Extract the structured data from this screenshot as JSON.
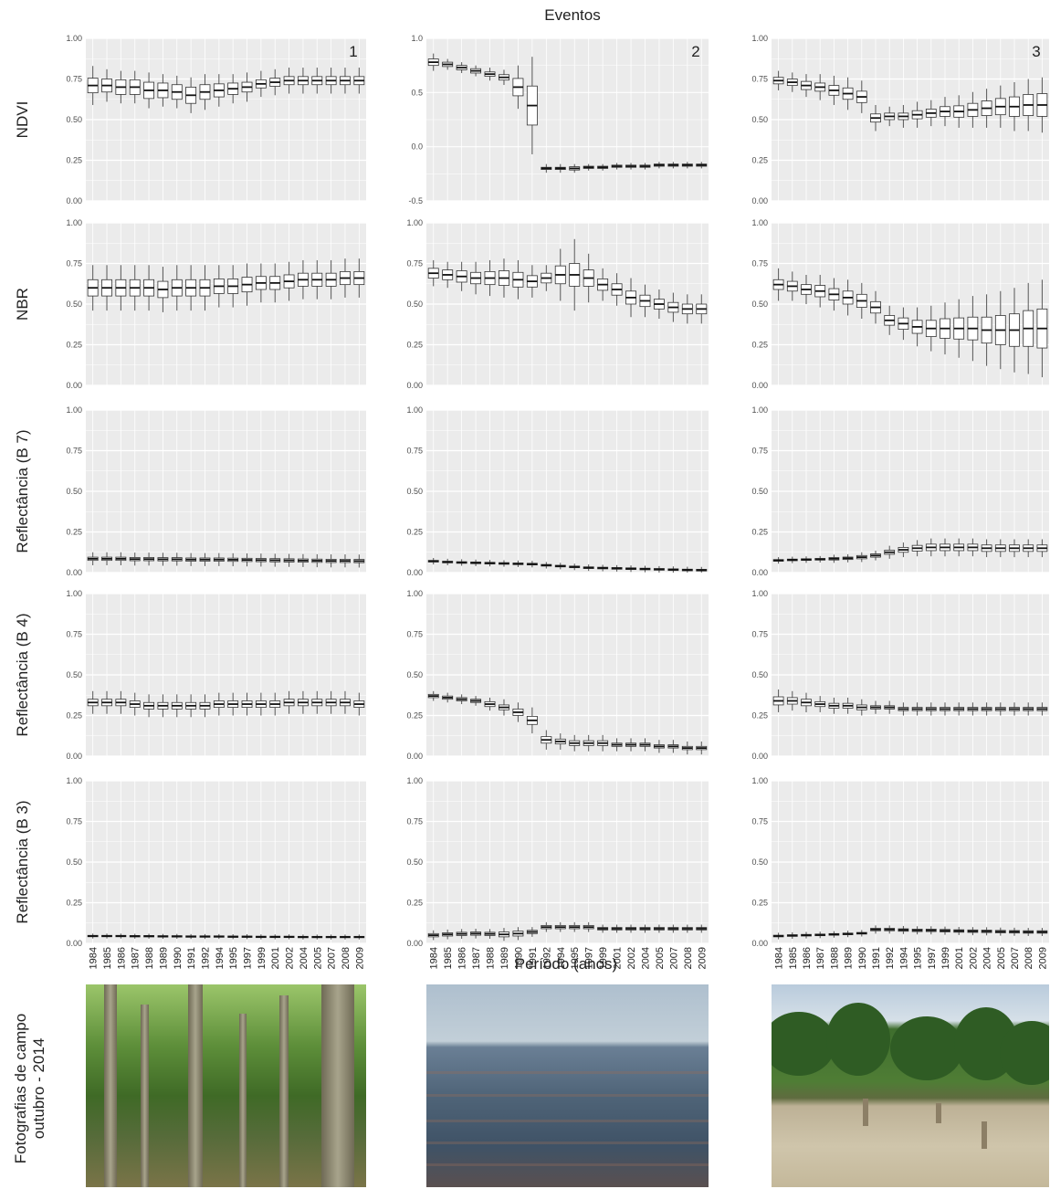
{
  "figure": {
    "top_title": "Eventos",
    "x_axis_title": "Período (anos)",
    "photo_label": [
      "Fotografias de campo",
      "outubro - 2014"
    ],
    "column_numbers": [
      "1",
      "2",
      "3"
    ],
    "row_labels": [
      "NDVI",
      "NBR",
      "Reflectância (B 7)",
      "Reflectância (B 4)",
      "Reflectância (B 3)"
    ],
    "years": [
      "1984",
      "1985",
      "1986",
      "1987",
      "1988",
      "1989",
      "1990",
      "1991",
      "1992",
      "1994",
      "1995",
      "1997",
      "1999",
      "2001",
      "2002",
      "2004",
      "2005",
      "2007",
      "2008",
      "2009"
    ],
    "panel_background": "#ebebeb",
    "grid_color": "#ffffff",
    "box_fill": "#ffffff",
    "box_stroke": "#333333"
  },
  "chart_data": [
    {
      "type": "box",
      "row": "NDVI",
      "column": "1",
      "ylim": [
        0,
        1
      ],
      "yticks": [
        "0.00",
        "0.25",
        "0.50",
        "0.75",
        "1.00"
      ],
      "median": [
        0.71,
        0.71,
        0.7,
        0.7,
        0.68,
        0.68,
        0.67,
        0.65,
        0.67,
        0.68,
        0.69,
        0.7,
        0.72,
        0.73,
        0.74,
        0.74,
        0.74,
        0.74,
        0.74,
        0.74
      ],
      "iqr": [
        0.09,
        0.08,
        0.09,
        0.09,
        0.1,
        0.09,
        0.09,
        0.1,
        0.09,
        0.08,
        0.07,
        0.06,
        0.05,
        0.05,
        0.05,
        0.05,
        0.05,
        0.05,
        0.05,
        0.05
      ],
      "whisker": [
        0.12,
        0.1,
        0.1,
        0.1,
        0.11,
        0.1,
        0.1,
        0.11,
        0.11,
        0.1,
        0.09,
        0.09,
        0.08,
        0.08,
        0.08,
        0.08,
        0.08,
        0.08,
        0.08,
        0.08
      ]
    },
    {
      "type": "box",
      "row": "NDVI",
      "column": "2",
      "ylim": [
        -0.5,
        1
      ],
      "yticks": [
        "-0.5",
        "0.0",
        "0.5",
        "1.0"
      ],
      "median": [
        0.78,
        0.76,
        0.73,
        0.7,
        0.67,
        0.64,
        0.55,
        0.38,
        -0.2,
        -0.2,
        -0.2,
        -0.19,
        -0.19,
        -0.18,
        -0.18,
        -0.18,
        -0.17,
        -0.17,
        -0.17,
        -0.17
      ],
      "iqr": [
        0.06,
        0.04,
        0.04,
        0.04,
        0.04,
        0.05,
        0.16,
        0.36,
        0.02,
        0.02,
        0.03,
        0.02,
        0.02,
        0.02,
        0.02,
        0.02,
        0.02,
        0.02,
        0.02,
        0.02
      ],
      "whisker": [
        0.08,
        0.05,
        0.05,
        0.05,
        0.06,
        0.07,
        0.2,
        0.45,
        0.04,
        0.04,
        0.04,
        0.03,
        0.03,
        0.03,
        0.03,
        0.03,
        0.03,
        0.03,
        0.03,
        0.03
      ]
    },
    {
      "type": "box",
      "row": "NDVI",
      "column": "3",
      "ylim": [
        0,
        1
      ],
      "yticks": [
        "0.00",
        "0.25",
        "0.50",
        "0.75",
        "1.00"
      ],
      "median": [
        0.74,
        0.73,
        0.71,
        0.7,
        0.68,
        0.66,
        0.64,
        0.51,
        0.52,
        0.52,
        0.53,
        0.54,
        0.55,
        0.55,
        0.56,
        0.57,
        0.58,
        0.58,
        0.59,
        0.59
      ],
      "iqr": [
        0.04,
        0.04,
        0.05,
        0.05,
        0.06,
        0.07,
        0.07,
        0.05,
        0.04,
        0.04,
        0.05,
        0.05,
        0.06,
        0.07,
        0.08,
        0.09,
        0.1,
        0.12,
        0.13,
        0.14
      ],
      "whisker": [
        0.06,
        0.06,
        0.07,
        0.08,
        0.09,
        0.1,
        0.1,
        0.08,
        0.06,
        0.07,
        0.08,
        0.08,
        0.09,
        0.1,
        0.11,
        0.12,
        0.13,
        0.15,
        0.16,
        0.17
      ]
    },
    {
      "type": "box",
      "row": "NBR",
      "column": "1",
      "ylim": [
        0,
        1
      ],
      "yticks": [
        "0.00",
        "0.25",
        "0.50",
        "0.75",
        "1.00"
      ],
      "median": [
        0.6,
        0.6,
        0.6,
        0.6,
        0.6,
        0.59,
        0.6,
        0.6,
        0.6,
        0.61,
        0.61,
        0.62,
        0.63,
        0.63,
        0.64,
        0.65,
        0.65,
        0.65,
        0.66,
        0.66
      ],
      "iqr": [
        0.1,
        0.1,
        0.1,
        0.1,
        0.1,
        0.1,
        0.1,
        0.1,
        0.1,
        0.09,
        0.09,
        0.09,
        0.08,
        0.08,
        0.08,
        0.08,
        0.08,
        0.08,
        0.08,
        0.08
      ],
      "whisker": [
        0.14,
        0.14,
        0.14,
        0.14,
        0.14,
        0.14,
        0.14,
        0.14,
        0.14,
        0.13,
        0.13,
        0.13,
        0.12,
        0.12,
        0.12,
        0.12,
        0.12,
        0.12,
        0.12,
        0.12
      ]
    },
    {
      "type": "box",
      "row": "NBR",
      "column": "2",
      "ylim": [
        0,
        1
      ],
      "yticks": [
        "0.00",
        "0.25",
        "0.50",
        "0.75",
        "1.00"
      ],
      "median": [
        0.69,
        0.68,
        0.67,
        0.66,
        0.66,
        0.66,
        0.65,
        0.64,
        0.66,
        0.68,
        0.68,
        0.66,
        0.62,
        0.59,
        0.54,
        0.52,
        0.5,
        0.48,
        0.47,
        0.47
      ],
      "iqr": [
        0.06,
        0.06,
        0.07,
        0.07,
        0.08,
        0.09,
        0.09,
        0.07,
        0.06,
        0.11,
        0.14,
        0.1,
        0.07,
        0.07,
        0.08,
        0.07,
        0.06,
        0.06,
        0.06,
        0.06
      ],
      "whisker": [
        0.08,
        0.08,
        0.09,
        0.1,
        0.11,
        0.12,
        0.12,
        0.1,
        0.08,
        0.16,
        0.22,
        0.15,
        0.1,
        0.1,
        0.12,
        0.1,
        0.09,
        0.09,
        0.09,
        0.09
      ]
    },
    {
      "type": "box",
      "row": "NBR",
      "column": "3",
      "ylim": [
        0,
        1
      ],
      "yticks": [
        "0.00",
        "0.25",
        "0.50",
        "0.75",
        "1.00"
      ],
      "median": [
        0.62,
        0.61,
        0.59,
        0.58,
        0.56,
        0.54,
        0.52,
        0.48,
        0.4,
        0.38,
        0.36,
        0.35,
        0.35,
        0.35,
        0.35,
        0.34,
        0.34,
        0.34,
        0.35,
        0.35
      ],
      "iqr": [
        0.06,
        0.06,
        0.06,
        0.07,
        0.07,
        0.08,
        0.08,
        0.07,
        0.06,
        0.07,
        0.08,
        0.1,
        0.12,
        0.13,
        0.14,
        0.16,
        0.18,
        0.2,
        0.22,
        0.24
      ],
      "whisker": [
        0.1,
        0.09,
        0.09,
        0.1,
        0.1,
        0.11,
        0.11,
        0.1,
        0.09,
        0.1,
        0.12,
        0.14,
        0.16,
        0.18,
        0.2,
        0.22,
        0.24,
        0.26,
        0.28,
        0.3
      ]
    },
    {
      "type": "box",
      "row": "Reflectância (B 7)",
      "column": "1",
      "ylim": [
        0,
        1
      ],
      "yticks": [
        "0.00",
        "0.25",
        "0.50",
        "0.75",
        "1.00"
      ],
      "median": [
        0.085,
        0.085,
        0.085,
        0.083,
        0.083,
        0.082,
        0.082,
        0.08,
        0.08,
        0.08,
        0.079,
        0.078,
        0.077,
        0.076,
        0.075,
        0.074,
        0.073,
        0.072,
        0.072,
        0.071
      ],
      "iqr": [
        0.02,
        0.02,
        0.02,
        0.02,
        0.02,
        0.02,
        0.02,
        0.02,
        0.02,
        0.02,
        0.02,
        0.02,
        0.02,
        0.02,
        0.02,
        0.02,
        0.02,
        0.02,
        0.02,
        0.02
      ],
      "whisker": [
        0.04,
        0.04,
        0.04,
        0.04,
        0.04,
        0.04,
        0.04,
        0.04,
        0.04,
        0.04,
        0.04,
        0.04,
        0.04,
        0.04,
        0.04,
        0.04,
        0.04,
        0.04,
        0.04,
        0.04
      ]
    },
    {
      "type": "box",
      "row": "Reflectância (B 7)",
      "column": "2",
      "ylim": [
        0,
        1
      ],
      "yticks": [
        "0.00",
        "0.25",
        "0.50",
        "0.75",
        "1.00"
      ],
      "median": [
        0.07,
        0.065,
        0.062,
        0.06,
        0.058,
        0.056,
        0.054,
        0.052,
        0.045,
        0.04,
        0.035,
        0.03,
        0.028,
        0.026,
        0.024,
        0.022,
        0.02,
        0.018,
        0.016,
        0.015
      ],
      "iqr": [
        0.01,
        0.01,
        0.01,
        0.01,
        0.01,
        0.01,
        0.01,
        0.01,
        0.01,
        0.01,
        0.01,
        0.01,
        0.01,
        0.01,
        0.01,
        0.01,
        0.01,
        0.01,
        0.01,
        0.01
      ],
      "whisker": [
        0.02,
        0.02,
        0.02,
        0.02,
        0.02,
        0.02,
        0.02,
        0.02,
        0.02,
        0.02,
        0.02,
        0.02,
        0.02,
        0.02,
        0.02,
        0.02,
        0.02,
        0.02,
        0.02,
        0.02
      ]
    },
    {
      "type": "box",
      "row": "Reflectância (B 7)",
      "column": "3",
      "ylim": [
        0,
        1
      ],
      "yticks": [
        "0.00",
        "0.25",
        "0.50",
        "0.75",
        "1.00"
      ],
      "median": [
        0.075,
        0.078,
        0.08,
        0.082,
        0.085,
        0.088,
        0.095,
        0.105,
        0.125,
        0.14,
        0.15,
        0.155,
        0.155,
        0.155,
        0.155,
        0.15,
        0.15,
        0.15,
        0.15,
        0.15
      ],
      "iqr": [
        0.01,
        0.01,
        0.01,
        0.01,
        0.015,
        0.015,
        0.02,
        0.02,
        0.025,
        0.03,
        0.035,
        0.04,
        0.04,
        0.04,
        0.04,
        0.04,
        0.04,
        0.04,
        0.04,
        0.04
      ],
      "whisker": [
        0.02,
        0.02,
        0.02,
        0.02,
        0.025,
        0.025,
        0.03,
        0.03,
        0.04,
        0.045,
        0.05,
        0.055,
        0.055,
        0.055,
        0.055,
        0.055,
        0.055,
        0.055,
        0.055,
        0.055
      ]
    },
    {
      "type": "box",
      "row": "Reflectância (B 4)",
      "column": "1",
      "ylim": [
        0,
        1
      ],
      "yticks": [
        "0.00",
        "0.25",
        "0.50",
        "0.75",
        "1.00"
      ],
      "median": [
        0.33,
        0.33,
        0.33,
        0.32,
        0.31,
        0.31,
        0.31,
        0.31,
        0.31,
        0.32,
        0.32,
        0.32,
        0.32,
        0.32,
        0.33,
        0.33,
        0.33,
        0.33,
        0.33,
        0.32
      ],
      "iqr": [
        0.04,
        0.04,
        0.04,
        0.04,
        0.04,
        0.04,
        0.04,
        0.04,
        0.04,
        0.04,
        0.04,
        0.04,
        0.04,
        0.04,
        0.04,
        0.04,
        0.04,
        0.04,
        0.04,
        0.04
      ],
      "whisker": [
        0.07,
        0.07,
        0.07,
        0.07,
        0.07,
        0.07,
        0.07,
        0.07,
        0.07,
        0.07,
        0.07,
        0.07,
        0.07,
        0.07,
        0.07,
        0.07,
        0.07,
        0.07,
        0.07,
        0.07
      ]
    },
    {
      "type": "box",
      "row": "Reflectância (B 4)",
      "column": "2",
      "ylim": [
        0,
        1
      ],
      "yticks": [
        "0.00",
        "0.25",
        "0.50",
        "0.75",
        "1.00"
      ],
      "median": [
        0.37,
        0.36,
        0.35,
        0.34,
        0.32,
        0.3,
        0.27,
        0.22,
        0.1,
        0.09,
        0.08,
        0.08,
        0.08,
        0.07,
        0.07,
        0.07,
        0.06,
        0.06,
        0.05,
        0.05
      ],
      "iqr": [
        0.02,
        0.02,
        0.02,
        0.02,
        0.03,
        0.03,
        0.04,
        0.05,
        0.04,
        0.03,
        0.03,
        0.03,
        0.03,
        0.02,
        0.02,
        0.02,
        0.02,
        0.02,
        0.02,
        0.02
      ],
      "whisker": [
        0.03,
        0.03,
        0.03,
        0.03,
        0.04,
        0.05,
        0.06,
        0.08,
        0.06,
        0.05,
        0.05,
        0.05,
        0.05,
        0.04,
        0.04,
        0.04,
        0.04,
        0.04,
        0.04,
        0.04
      ]
    },
    {
      "type": "box",
      "row": "Reflectância (B 4)",
      "column": "3",
      "ylim": [
        0,
        1
      ],
      "yticks": [
        "0.00",
        "0.25",
        "0.50",
        "0.75",
        "1.00"
      ],
      "median": [
        0.34,
        0.34,
        0.33,
        0.32,
        0.31,
        0.31,
        0.3,
        0.3,
        0.3,
        0.29,
        0.29,
        0.29,
        0.29,
        0.29,
        0.29,
        0.29,
        0.29,
        0.29,
        0.29,
        0.29
      ],
      "iqr": [
        0.05,
        0.04,
        0.04,
        0.03,
        0.03,
        0.03,
        0.03,
        0.02,
        0.02,
        0.02,
        0.02,
        0.02,
        0.02,
        0.02,
        0.02,
        0.02,
        0.02,
        0.02,
        0.02,
        0.02
      ],
      "whisker": [
        0.07,
        0.06,
        0.06,
        0.05,
        0.05,
        0.05,
        0.05,
        0.04,
        0.04,
        0.04,
        0.04,
        0.04,
        0.04,
        0.04,
        0.04,
        0.04,
        0.04,
        0.04,
        0.04,
        0.04
      ]
    },
    {
      "type": "box",
      "row": "Reflectância (B 3)",
      "column": "1",
      "ylim": [
        0,
        1
      ],
      "yticks": [
        "0.00",
        "0.25",
        "0.50",
        "0.75",
        "1.00"
      ],
      "median": [
        0.045,
        0.045,
        0.045,
        0.044,
        0.044,
        0.043,
        0.043,
        0.042,
        0.042,
        0.042,
        0.041,
        0.041,
        0.04,
        0.04,
        0.04,
        0.039,
        0.039,
        0.039,
        0.039,
        0.039
      ],
      "iqr": [
        0.008,
        0.008,
        0.008,
        0.008,
        0.008,
        0.008,
        0.008,
        0.008,
        0.008,
        0.008,
        0.008,
        0.008,
        0.008,
        0.008,
        0.008,
        0.008,
        0.008,
        0.008,
        0.008,
        0.008
      ],
      "whisker": [
        0.015,
        0.015,
        0.015,
        0.015,
        0.015,
        0.015,
        0.015,
        0.015,
        0.015,
        0.015,
        0.015,
        0.015,
        0.015,
        0.015,
        0.015,
        0.015,
        0.015,
        0.015,
        0.015,
        0.015
      ]
    },
    {
      "type": "box",
      "row": "Reflectância (B 3)",
      "column": "2",
      "ylim": [
        0,
        1
      ],
      "yticks": [
        "0.00",
        "0.25",
        "0.50",
        "0.75",
        "1.00"
      ],
      "median": [
        0.05,
        0.055,
        0.058,
        0.06,
        0.058,
        0.055,
        0.06,
        0.07,
        0.1,
        0.1,
        0.1,
        0.1,
        0.09,
        0.09,
        0.09,
        0.09,
        0.09,
        0.09,
        0.09,
        0.09
      ],
      "iqr": [
        0.02,
        0.02,
        0.02,
        0.02,
        0.02,
        0.03,
        0.03,
        0.02,
        0.02,
        0.02,
        0.02,
        0.02,
        0.015,
        0.015,
        0.015,
        0.015,
        0.015,
        0.015,
        0.015,
        0.015
      ],
      "whisker": [
        0.03,
        0.03,
        0.03,
        0.03,
        0.03,
        0.04,
        0.04,
        0.03,
        0.03,
        0.03,
        0.03,
        0.03,
        0.025,
        0.025,
        0.025,
        0.025,
        0.025,
        0.025,
        0.025,
        0.025
      ]
    },
    {
      "type": "box",
      "row": "Reflectância (B 3)",
      "column": "3",
      "ylim": [
        0,
        1
      ],
      "yticks": [
        "0.00",
        "0.25",
        "0.50",
        "0.75",
        "1.00"
      ],
      "median": [
        0.045,
        0.048,
        0.05,
        0.052,
        0.055,
        0.058,
        0.062,
        0.085,
        0.085,
        0.082,
        0.08,
        0.08,
        0.078,
        0.076,
        0.075,
        0.074,
        0.072,
        0.071,
        0.07,
        0.07
      ],
      "iqr": [
        0.01,
        0.01,
        0.01,
        0.01,
        0.01,
        0.01,
        0.01,
        0.015,
        0.015,
        0.015,
        0.015,
        0.015,
        0.015,
        0.015,
        0.015,
        0.015,
        0.015,
        0.015,
        0.015,
        0.015
      ],
      "whisker": [
        0.02,
        0.02,
        0.02,
        0.02,
        0.02,
        0.02,
        0.02,
        0.025,
        0.025,
        0.025,
        0.025,
        0.025,
        0.025,
        0.025,
        0.025,
        0.025,
        0.025,
        0.025,
        0.025,
        0.025
      ]
    }
  ]
}
